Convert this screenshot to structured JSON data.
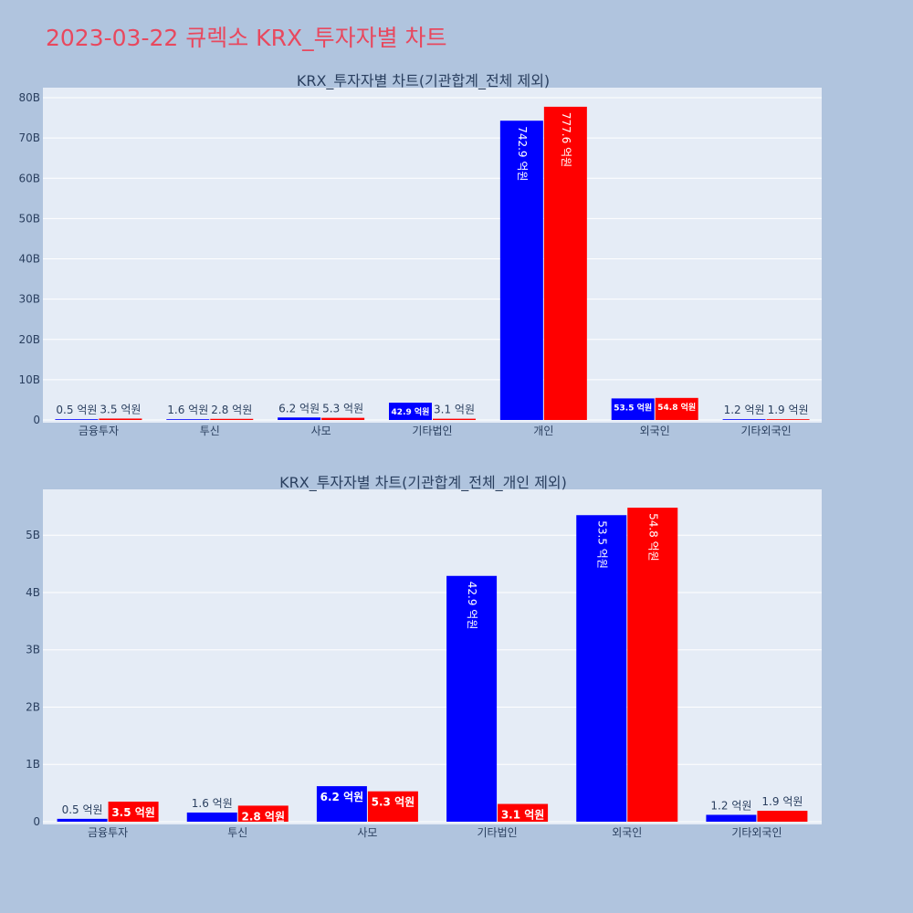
{
  "title": "2023-03-22 큐렉소 KRX_투자자별 차트",
  "colors": {
    "page_bg": "#b0c4de",
    "plot_bg": "#e5ecf6",
    "title": "#e8485e",
    "series_a": "#0000ff",
    "series_b": "#ff0000"
  },
  "chart_data": [
    {
      "type": "bar",
      "title": "KRX_투자자별 차트(기관합계_전체 제외)",
      "categories": [
        "금융투자",
        "투신",
        "사모",
        "기타법인",
        "개인",
        "외국인",
        "기타외국인"
      ],
      "series": [
        {
          "color": "#0000ff",
          "values": [
            0.05,
            0.16,
            0.62,
            4.29,
            74.29,
            5.35,
            0.12
          ],
          "labels": [
            "0.5 억원",
            "1.6 억원",
            "6.2 억원",
            "42.9 억원",
            "742.9 억원",
            "53.5 억원",
            "1.2 억원"
          ]
        },
        {
          "color": "#ff0000",
          "values": [
            0.35,
            0.28,
            0.53,
            0.31,
            77.76,
            5.48,
            0.19
          ],
          "labels": [
            "3.5 억원",
            "2.8 억원",
            "5.3 억원",
            "3.1 억원",
            "777.6 억원",
            "54.8 억원",
            "1.9 억원"
          ]
        }
      ],
      "unit": "B",
      "ylim": [
        0,
        82.5
      ],
      "yticks": [
        "0",
        "10B",
        "20B",
        "30B",
        "40B",
        "50B",
        "60B",
        "70B",
        "80B"
      ],
      "grid": true
    },
    {
      "type": "bar",
      "title": "KRX_투자자별 차트(기관합계_전체_개인 제외)",
      "categories": [
        "금융투자",
        "투신",
        "사모",
        "기타법인",
        "외국인",
        "기타외국인"
      ],
      "series": [
        {
          "color": "#0000ff",
          "values": [
            0.05,
            0.16,
            0.62,
            4.29,
            5.35,
            0.12
          ],
          "labels": [
            "0.5 억원",
            "1.6 억원",
            "6.2 억원",
            "42.9 억원",
            "53.5 억원",
            "1.2 억원"
          ]
        },
        {
          "color": "#ff0000",
          "values": [
            0.35,
            0.28,
            0.53,
            0.31,
            5.48,
            0.19
          ],
          "labels": [
            "3.5 억원",
            "2.8 억원",
            "5.3 억원",
            "3.1 억원",
            "54.8 억원",
            "1.9 억원"
          ]
        }
      ],
      "unit": "B",
      "ylim": [
        0,
        5.8
      ],
      "yticks": [
        "0",
        "1B",
        "2B",
        "3B",
        "4B",
        "5B"
      ],
      "grid": true
    }
  ]
}
